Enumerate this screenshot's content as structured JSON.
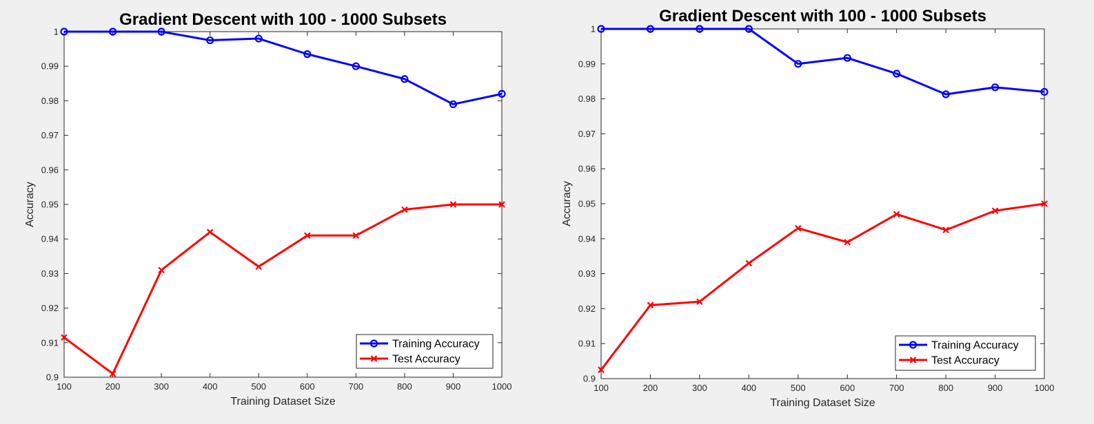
{
  "chart_data": [
    {
      "type": "line",
      "title": "Gradient Descent with 100 - 1000 Subsets",
      "xlabel": "Training Dataset Size",
      "ylabel": "Accuracy",
      "xlim": [
        100,
        1000
      ],
      "ylim": [
        0.9,
        1.0
      ],
      "x": [
        100,
        200,
        300,
        400,
        500,
        600,
        700,
        800,
        900,
        1000
      ],
      "x_ticks": [
        "100",
        "200",
        "300",
        "400",
        "500",
        "600",
        "700",
        "800",
        "900",
        "1000"
      ],
      "y_ticks": [
        "0.9",
        "0.91",
        "0.92",
        "0.93",
        "0.94",
        "0.95",
        "0.96",
        "0.97",
        "0.98",
        "0.99",
        "1"
      ],
      "y_tick_values": [
        0.9,
        0.91,
        0.92,
        0.93,
        0.94,
        0.95,
        0.96,
        0.97,
        0.98,
        0.99,
        1.0
      ],
      "grid": false,
      "legend_position": "bottom-right",
      "series": [
        {
          "name": "Training Accuracy",
          "color": "#0000ff",
          "marker": "circle",
          "values": [
            1.0,
            1.0,
            1.0,
            0.9975,
            0.998,
            0.9935,
            0.99,
            0.9863,
            0.979,
            0.982
          ]
        },
        {
          "name": "Test Accuracy",
          "color": "#ff0000",
          "marker": "x",
          "values": [
            0.9115,
            0.901,
            0.931,
            0.942,
            0.932,
            0.941,
            0.941,
            0.9485,
            0.95,
            0.95
          ]
        }
      ]
    },
    {
      "type": "line",
      "title": "Gradient Descent with 100 - 1000 Subsets",
      "xlabel": "Training Dataset Size",
      "ylabel": "Accuracy",
      "xlim": [
        100,
        1000
      ],
      "ylim": [
        0.9,
        1.0
      ],
      "x": [
        100,
        200,
        300,
        400,
        500,
        600,
        700,
        800,
        900,
        1000
      ],
      "x_ticks": [
        "100",
        "200",
        "300",
        "400",
        "500",
        "600",
        "700",
        "800",
        "900",
        "1000"
      ],
      "y_ticks": [
        "0.9",
        "0.91",
        "0.92",
        "0.93",
        "0.94",
        "0.95",
        "0.96",
        "0.97",
        "0.98",
        "0.99",
        "1"
      ],
      "y_tick_values": [
        0.9,
        0.91,
        0.92,
        0.93,
        0.94,
        0.95,
        0.96,
        0.97,
        0.98,
        0.99,
        1.0
      ],
      "grid": false,
      "legend_position": "bottom-right",
      "series": [
        {
          "name": "Training Accuracy",
          "color": "#0000ff",
          "marker": "circle",
          "values": [
            1.0,
            1.0,
            1.0,
            1.0,
            0.99,
            0.9917,
            0.9872,
            0.9813,
            0.9833,
            0.982
          ]
        },
        {
          "name": "Test Accuracy",
          "color": "#ff0000",
          "marker": "x",
          "values": [
            0.9025,
            0.921,
            0.922,
            0.933,
            0.943,
            0.939,
            0.947,
            0.9425,
            0.948,
            0.95
          ]
        }
      ]
    }
  ]
}
